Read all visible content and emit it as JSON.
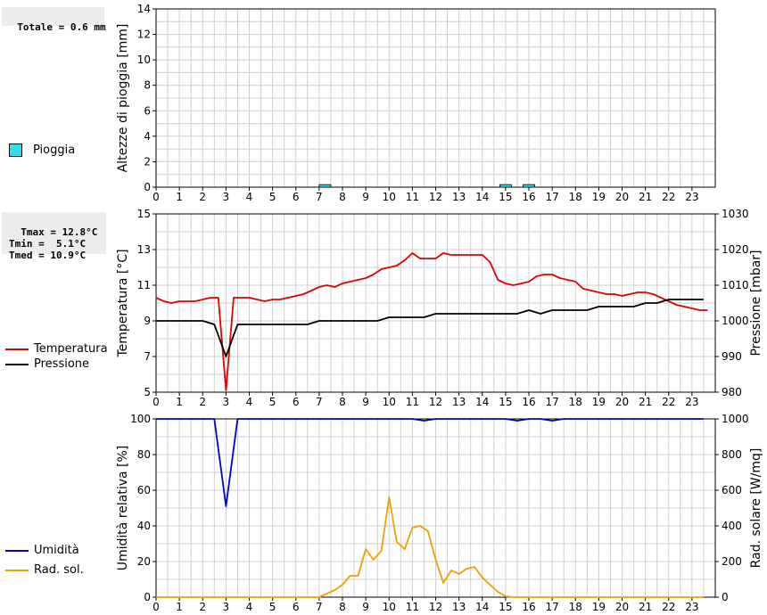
{
  "colors": {
    "rain": "#2fe0e6",
    "temp": "#e00000",
    "press": "#000000",
    "hum": "#0000d0",
    "rad": "#f0a000",
    "grid": "#cfcfcf",
    "axis": "#000000"
  },
  "stats": {
    "rain_total": "Totale = 0.6 mm",
    "temp_block": "Tmax = 12.8°C\nTmin =  5.1°C\nTmed = 10.9°C"
  },
  "legend": {
    "rain": "Pioggia",
    "temp": "Temperatura",
    "press": "Pressione",
    "hum": "Umidità",
    "rad": "Rad. sol."
  },
  "chart_data": [
    {
      "type": "bar",
      "ylabel": "Altezze di pioggia [mm]",
      "ylim": [
        0,
        14
      ],
      "yticks": [
        0,
        2,
        4,
        6,
        8,
        10,
        12,
        14
      ],
      "xlim": [
        0,
        24
      ],
      "xticks": [
        0,
        1,
        2,
        3,
        4,
        5,
        6,
        7,
        8,
        9,
        10,
        11,
        12,
        13,
        14,
        15,
        16,
        17,
        18,
        19,
        20,
        21,
        22,
        23
      ],
      "series": [
        {
          "name": "Pioggia",
          "x": [
            7.25,
            15.0,
            16.0
          ],
          "values": [
            0.2,
            0.2,
            0.2
          ]
        }
      ]
    },
    {
      "type": "line",
      "ylabel": "Temperatura [°C]",
      "ylabel_right": "Pressione [mbar]",
      "ylim": [
        5,
        15
      ],
      "yticks": [
        5,
        7,
        9,
        11,
        13,
        15
      ],
      "ylim_right": [
        980,
        1030
      ],
      "yticks_right": [
        980,
        990,
        1000,
        1010,
        1020,
        1030
      ],
      "xlim": [
        0,
        24
      ],
      "xticks": [
        0,
        1,
        2,
        3,
        4,
        5,
        6,
        7,
        8,
        9,
        10,
        11,
        12,
        13,
        14,
        15,
        16,
        17,
        18,
        19,
        20,
        21,
        22,
        23
      ],
      "series": [
        {
          "name": "Temperatura",
          "axis": "left",
          "x": [
            0,
            0.33,
            0.67,
            1,
            1.33,
            1.67,
            2,
            2.33,
            2.67,
            3,
            3.33,
            3.67,
            4,
            4.33,
            4.67,
            5,
            5.33,
            5.67,
            6,
            6.33,
            6.67,
            7,
            7.33,
            7.67,
            8,
            8.33,
            8.67,
            9,
            9.33,
            9.67,
            10,
            10.33,
            10.67,
            11,
            11.33,
            11.67,
            12,
            12.33,
            12.67,
            13,
            13.33,
            13.67,
            14,
            14.33,
            14.67,
            15,
            15.33,
            15.67,
            16,
            16.33,
            16.67,
            17,
            17.33,
            17.67,
            18,
            18.33,
            18.67,
            19,
            19.33,
            19.67,
            20,
            20.33,
            20.67,
            21,
            21.33,
            21.67,
            22,
            22.33,
            22.67,
            23,
            23.33,
            23.67
          ],
          "values": [
            10.3,
            10.1,
            10.0,
            10.1,
            10.1,
            10.1,
            10.2,
            10.3,
            10.3,
            5.1,
            10.3,
            10.3,
            10.3,
            10.2,
            10.1,
            10.2,
            10.2,
            10.3,
            10.4,
            10.5,
            10.7,
            10.9,
            11.0,
            10.9,
            11.1,
            11.2,
            11.3,
            11.4,
            11.6,
            11.9,
            12.0,
            12.1,
            12.4,
            12.8,
            12.5,
            12.5,
            12.5,
            12.8,
            12.7,
            12.7,
            12.7,
            12.7,
            12.7,
            12.3,
            11.3,
            11.1,
            11.0,
            11.1,
            11.2,
            11.5,
            11.6,
            11.6,
            11.4,
            11.3,
            11.2,
            10.8,
            10.7,
            10.6,
            10.5,
            10.5,
            10.4,
            10.5,
            10.6,
            10.6,
            10.5,
            10.3,
            10.1,
            9.9,
            9.8,
            9.7,
            9.6,
            9.6
          ]
        },
        {
          "name": "Pressione",
          "axis": "right",
          "x": [
            0,
            0.5,
            1,
            1.5,
            2,
            2.5,
            3,
            3.5,
            4,
            4.5,
            5,
            5.5,
            6,
            6.5,
            7,
            7.5,
            8,
            8.5,
            9,
            9.5,
            10,
            10.5,
            11,
            11.5,
            12,
            12.5,
            13,
            13.5,
            14,
            14.5,
            15,
            15.5,
            16,
            16.5,
            17,
            17.5,
            18,
            18.5,
            19,
            19.5,
            20,
            20.5,
            21,
            21.5,
            22,
            22.5,
            23,
            23.5
          ],
          "values": [
            1000,
            1000,
            1000,
            1000,
            1000,
            999,
            990,
            999,
            999,
            999,
            999,
            999,
            999,
            999,
            1000,
            1000,
            1000,
            1000,
            1000,
            1000,
            1001,
            1001,
            1001,
            1001,
            1002,
            1002,
            1002,
            1002,
            1002,
            1002,
            1002,
            1002,
            1003,
            1002,
            1003,
            1003,
            1003,
            1003,
            1004,
            1004,
            1004,
            1004,
            1005,
            1005,
            1006,
            1006,
            1006,
            1006
          ]
        }
      ]
    },
    {
      "type": "line",
      "ylabel": "Umidità relativa [%]",
      "ylabel_right": "Rad. solare [W/mq]",
      "ylim": [
        0,
        100
      ],
      "yticks": [
        0,
        20,
        40,
        60,
        80,
        100
      ],
      "ylim_right": [
        0,
        1000
      ],
      "yticks_right": [
        0,
        200,
        400,
        600,
        800,
        1000
      ],
      "xlim": [
        0,
        24
      ],
      "xticks": [
        0,
        1,
        2,
        3,
        4,
        5,
        6,
        7,
        8,
        9,
        10,
        11,
        12,
        13,
        14,
        15,
        16,
        17,
        18,
        19,
        20,
        21,
        22,
        23
      ],
      "series": [
        {
          "name": "Umidità",
          "axis": "left",
          "x": [
            0,
            0.5,
            1,
            1.5,
            2,
            2.5,
            3,
            3.5,
            4,
            4.5,
            5,
            5.5,
            6,
            6.5,
            7,
            7.5,
            8,
            8.5,
            9,
            9.5,
            10,
            10.5,
            11,
            11.5,
            12,
            12.5,
            13,
            13.5,
            14,
            14.5,
            15,
            15.5,
            16,
            16.5,
            17,
            17.5,
            18,
            18.5,
            19,
            19.5,
            20,
            20.5,
            21,
            21.5,
            22,
            22.5,
            23,
            23.5
          ],
          "values": [
            100,
            100,
            100,
            100,
            100,
            100,
            51,
            100,
            100,
            100,
            100,
            100,
            100,
            100,
            100,
            100,
            100,
            100,
            100,
            100,
            100,
            100,
            100,
            99,
            100,
            100,
            100,
            100,
            100,
            100,
            100,
            99,
            100,
            100,
            99,
            100,
            100,
            100,
            100,
            100,
            100,
            100,
            100,
            100,
            100,
            100,
            100,
            100
          ]
        },
        {
          "name": "Rad. sol.",
          "axis": "right",
          "x": [
            0,
            0.5,
            1,
            1.5,
            2,
            2.5,
            3,
            3.5,
            4,
            4.5,
            5,
            5.5,
            6,
            6.5,
            7,
            7.33,
            7.67,
            8,
            8.33,
            8.67,
            9,
            9.33,
            9.67,
            10,
            10.33,
            10.67,
            11,
            11.33,
            11.67,
            12,
            12.33,
            12.67,
            13,
            13.33,
            13.67,
            14,
            14.33,
            14.67,
            15,
            15.33,
            15.67,
            16,
            16.33,
            16.67,
            17,
            17.33,
            17.67,
            18,
            18.33,
            18.67,
            19,
            19.5,
            20,
            20.5,
            21,
            21.5,
            22,
            22.5,
            23,
            23.5
          ],
          "values": [
            0,
            0,
            0,
            0,
            0,
            0,
            0,
            0,
            0,
            0,
            0,
            0,
            0,
            0,
            0,
            20,
            40,
            70,
            120,
            120,
            270,
            210,
            260,
            560,
            310,
            270,
            390,
            400,
            370,
            210,
            80,
            150,
            130,
            160,
            170,
            110,
            70,
            30,
            5,
            0,
            0,
            0,
            0,
            0,
            0,
            0,
            0,
            0,
            0,
            0,
            0,
            0,
            0,
            0,
            0,
            0,
            0,
            0,
            0,
            0
          ]
        }
      ]
    }
  ]
}
